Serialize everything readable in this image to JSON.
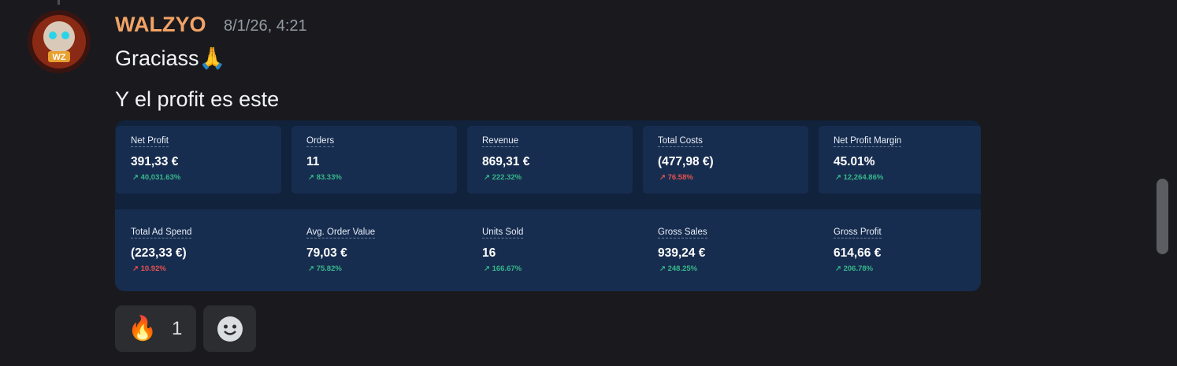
{
  "message": {
    "author": "WALZYO",
    "timestamp": "8/1/26, 4:21",
    "lines": [
      "Graciass🙏",
      "Y el profit es este"
    ],
    "dashboard": {
      "rows": [
        [
          {
            "label": "Net Profit",
            "value": "391,33 €",
            "change": "↗ 40,031.63%",
            "color": "#35b88a"
          },
          {
            "label": "Orders",
            "value": "11",
            "change": "↗ 83.33%",
            "color": "#35b88a"
          },
          {
            "label": "Revenue",
            "value": "869,31 €",
            "change": "↗ 222.32%",
            "color": "#35b88a"
          },
          {
            "label": "Total Costs",
            "value": "(477,98 €)",
            "change": "↗ 76.58%",
            "color": "#e5524f"
          },
          {
            "label": "Net Profit Margin",
            "value": "45.01%",
            "change": "↗ 12,264.86%",
            "color": "#35b88a"
          }
        ],
        [
          {
            "label": "Total Ad Spend",
            "value": "(223,33 €)",
            "change": "↗ 10.92%",
            "color": "#e5524f"
          },
          {
            "label": "Avg. Order Value",
            "value": "79,03 €",
            "change": "↗ 75.82%",
            "color": "#35b88a"
          },
          {
            "label": "Units Sold",
            "value": "16",
            "change": "↗ 166.67%",
            "color": "#35b88a"
          },
          {
            "label": "Gross Sales",
            "value": "939,24 €",
            "change": "↗ 248.25%",
            "color": "#35b88a"
          },
          {
            "label": "Gross Profit",
            "value": "614,66 €",
            "change": "↗ 206.78%",
            "color": "#35b88a"
          }
        ]
      ]
    },
    "reactions": [
      {
        "emoji": "🔥",
        "count": "1"
      }
    ]
  }
}
